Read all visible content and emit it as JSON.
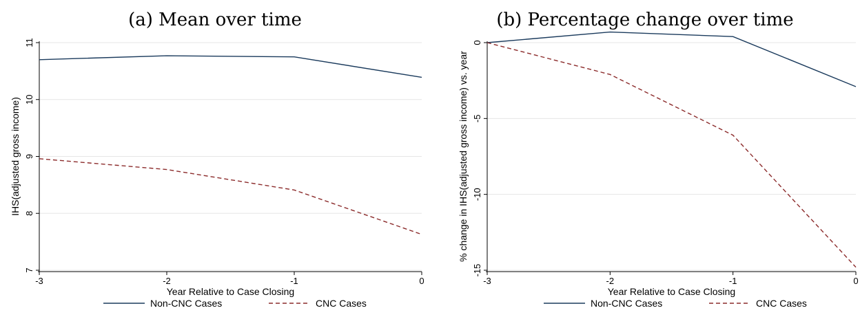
{
  "colors": {
    "series1": "#1a3a5c",
    "series2": "#8b2a2a",
    "grid": "#e6e6e6",
    "axis": "#000000"
  },
  "chart_data": [
    {
      "type": "line",
      "title": "(a)  Mean over time",
      "xlabel": "Year Relative to Case Closing",
      "ylabel": "IHS(adjusted gross income)",
      "x": [
        -3,
        -2,
        -1,
        0
      ],
      "xlim": [
        -3,
        0
      ],
      "ylim": [
        7,
        11
      ],
      "xticks": [
        -3,
        -2,
        -1,
        0
      ],
      "yticks": [
        7,
        8,
        9,
        10,
        11
      ],
      "grid": true,
      "legend_position": "bottom",
      "series": [
        {
          "name": "Non-CNC Cases",
          "style": "solid",
          "values": [
            10.7,
            10.77,
            10.75,
            10.39
          ]
        },
        {
          "name": "CNC Cases",
          "style": "dashed",
          "values": [
            8.96,
            8.77,
            8.41,
            7.63
          ]
        }
      ]
    },
    {
      "type": "line",
      "title": "(b)  Percentage change over time",
      "xlabel": "Year Relative to Case Closing",
      "ylabel": "% change in IHS(adjusted gross income) vs. year",
      "x": [
        -3,
        -2,
        -1,
        0
      ],
      "xlim": [
        -3,
        0
      ],
      "ylim": [
        -15,
        0
      ],
      "xticks": [
        -3,
        -2,
        -1,
        0
      ],
      "yticks": [
        -15,
        -10,
        -5,
        0
      ],
      "grid": true,
      "legend_position": "bottom",
      "series": [
        {
          "name": "Non-CNC Cases",
          "style": "solid",
          "values": [
            0,
            0.7,
            0.4,
            -2.9
          ]
        },
        {
          "name": "CNC Cases",
          "style": "dashed",
          "values": [
            0,
            -2.1,
            -6.1,
            -14.8
          ]
        }
      ]
    }
  ]
}
